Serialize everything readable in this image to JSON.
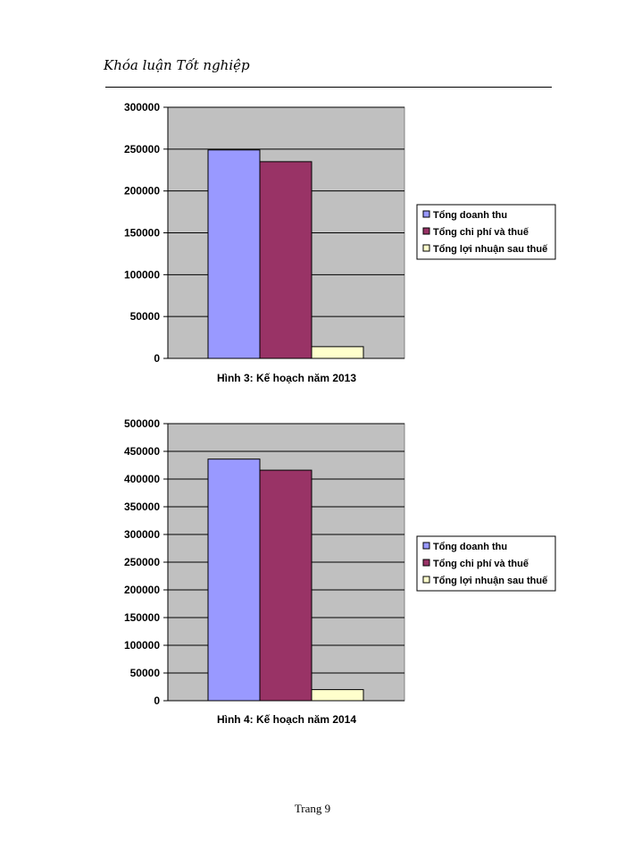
{
  "header": {
    "title": "Khóa luận Tốt nghiệp"
  },
  "footer": {
    "page": "Trang 9"
  },
  "colors": {
    "revenue": "#9999ff",
    "cost": "#993366",
    "profit": "#ffffcc",
    "plot_bg": "#c0c0c0"
  },
  "chart_data": [
    {
      "type": "bar",
      "title": "Hình 3: Kế hoạch năm 2013",
      "ylim": [
        0,
        300000
      ],
      "yticks": [
        "300000",
        "250000",
        "200000",
        "150000",
        "100000",
        "50000",
        "0"
      ],
      "legend_position": "right",
      "grid": true,
      "series": [
        {
          "name": "Tổng doanh thu",
          "value": 249000
        },
        {
          "name": "Tổng chi phí và thuế",
          "value": 235000
        },
        {
          "name": "Tổng lợi nhuận sau thuế",
          "value": 14000
        }
      ]
    },
    {
      "type": "bar",
      "title": "Hình 4: Kế hoạch năm 2014",
      "ylim": [
        0,
        500000
      ],
      "yticks": [
        "500000",
        "450000",
        "400000",
        "350000",
        "300000",
        "250000",
        "200000",
        "150000",
        "100000",
        "50000",
        "0"
      ],
      "legend_position": "right",
      "grid": true,
      "series": [
        {
          "name": "Tổng doanh thu",
          "value": 436000
        },
        {
          "name": "Tổng chi phí và thuế",
          "value": 416000
        },
        {
          "name": "Tổng lợi nhuận sau thuế",
          "value": 20000
        }
      ]
    }
  ]
}
